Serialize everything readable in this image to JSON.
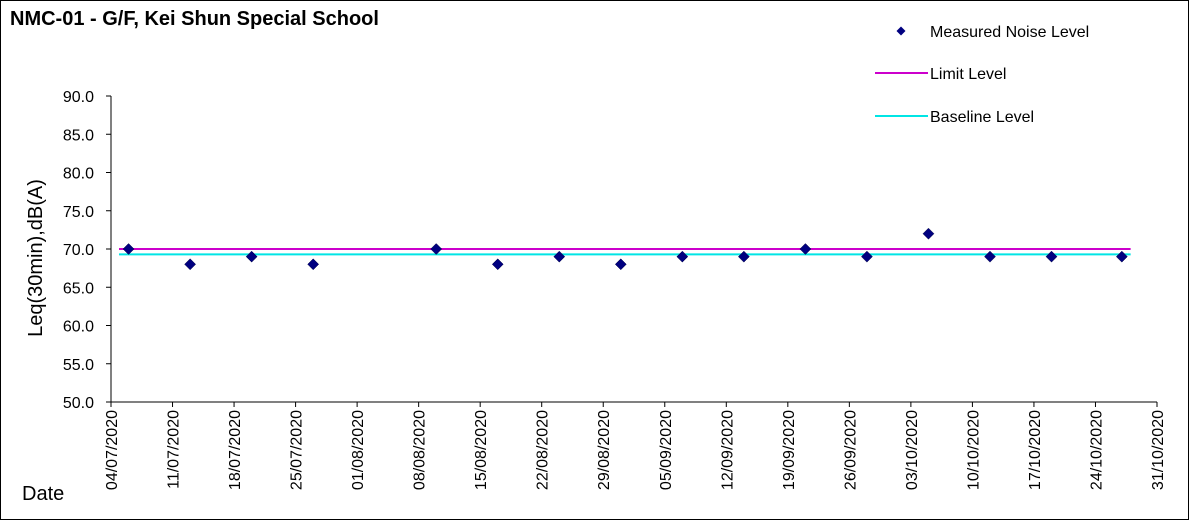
{
  "chart_data": {
    "type": "scatter",
    "title": "NMC-01 - G/F, Kei Shun Special School",
    "ylabel": "Leq(30min),dB(A)",
    "xlabel": "Date",
    "ylim": [
      50.0,
      90.0
    ],
    "yticks": [
      "50.0",
      "55.0",
      "60.0",
      "65.0",
      "70.0",
      "75.0",
      "80.0",
      "85.0",
      "90.0"
    ],
    "xlim": [
      "2020-07-04",
      "2020-10-31"
    ],
    "xticks": [
      "04/07/2020",
      "11/07/2020",
      "18/07/2020",
      "25/07/2020",
      "01/08/2020",
      "08/08/2020",
      "15/08/2020",
      "22/08/2020",
      "29/08/2020",
      "05/09/2020",
      "12/09/2020",
      "19/09/2020",
      "26/09/2020",
      "03/10/2020",
      "10/10/2020",
      "17/10/2020",
      "24/10/2020",
      "31/10/2020"
    ],
    "legend_placement": "top-right",
    "grid": false,
    "series": [
      {
        "name": "Measured Noise Level",
        "marker": "diamond",
        "color": "#000080",
        "x": [
          "2020-07-06",
          "2020-07-13",
          "2020-07-20",
          "2020-07-27",
          "2020-08-10",
          "2020-08-17",
          "2020-08-24",
          "2020-08-31",
          "2020-09-07",
          "2020-09-14",
          "2020-09-21",
          "2020-09-28",
          "2020-10-05",
          "2020-10-12",
          "2020-10-19",
          "2020-10-27"
        ],
        "y": [
          70,
          68,
          69,
          68,
          70,
          68,
          69,
          68,
          69,
          69,
          70,
          69,
          72,
          69,
          69,
          69
        ]
      },
      {
        "name": "Limit Level",
        "type": "line",
        "color": "#cc00cc",
        "y": 70.0
      },
      {
        "name": "Baseline Level",
        "type": "line",
        "color": "#00e5e5",
        "y": 69.3
      }
    ]
  }
}
